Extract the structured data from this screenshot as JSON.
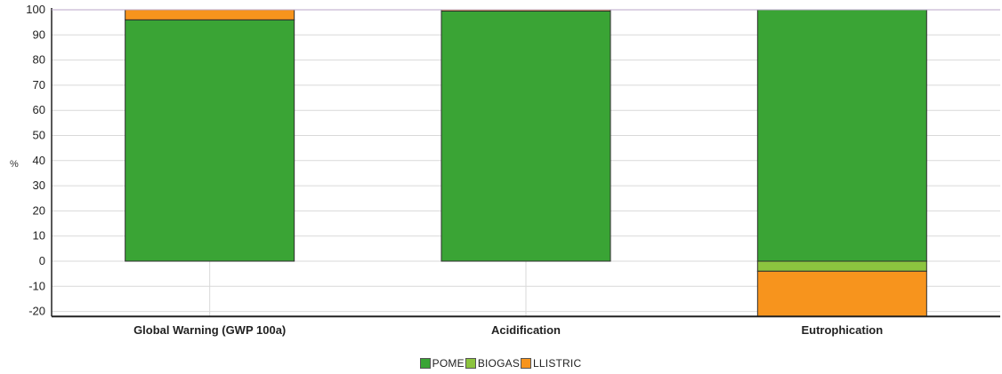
{
  "chart_data": {
    "type": "bar",
    "stacked": true,
    "categories": [
      "Global Warning (GWP 100a)",
      "Acidification",
      "Eutrophication"
    ],
    "series": [
      {
        "name": "POME",
        "color": "#3aa435",
        "values": [
          96,
          99.5,
          100
        ]
      },
      {
        "name": "BIOGAS",
        "color": "#8cc43f",
        "values": [
          0,
          0,
          -4
        ]
      },
      {
        "name": "LLISTRIC",
        "color": "#f7941d",
        "values": [
          4,
          0.5,
          -18
        ]
      }
    ],
    "legend_labels": [
      "POME",
      "BIOGAS",
      "LLISTRIC"
    ],
    "ylabel": "%",
    "ylim": [
      -22,
      100
    ],
    "yticks": [
      "100",
      "90",
      "80",
      "70",
      "60",
      "50",
      "40",
      "30",
      "20",
      "10",
      "0",
      "-10",
      "-20"
    ],
    "grid": true,
    "legend_position": "bottom-center"
  }
}
